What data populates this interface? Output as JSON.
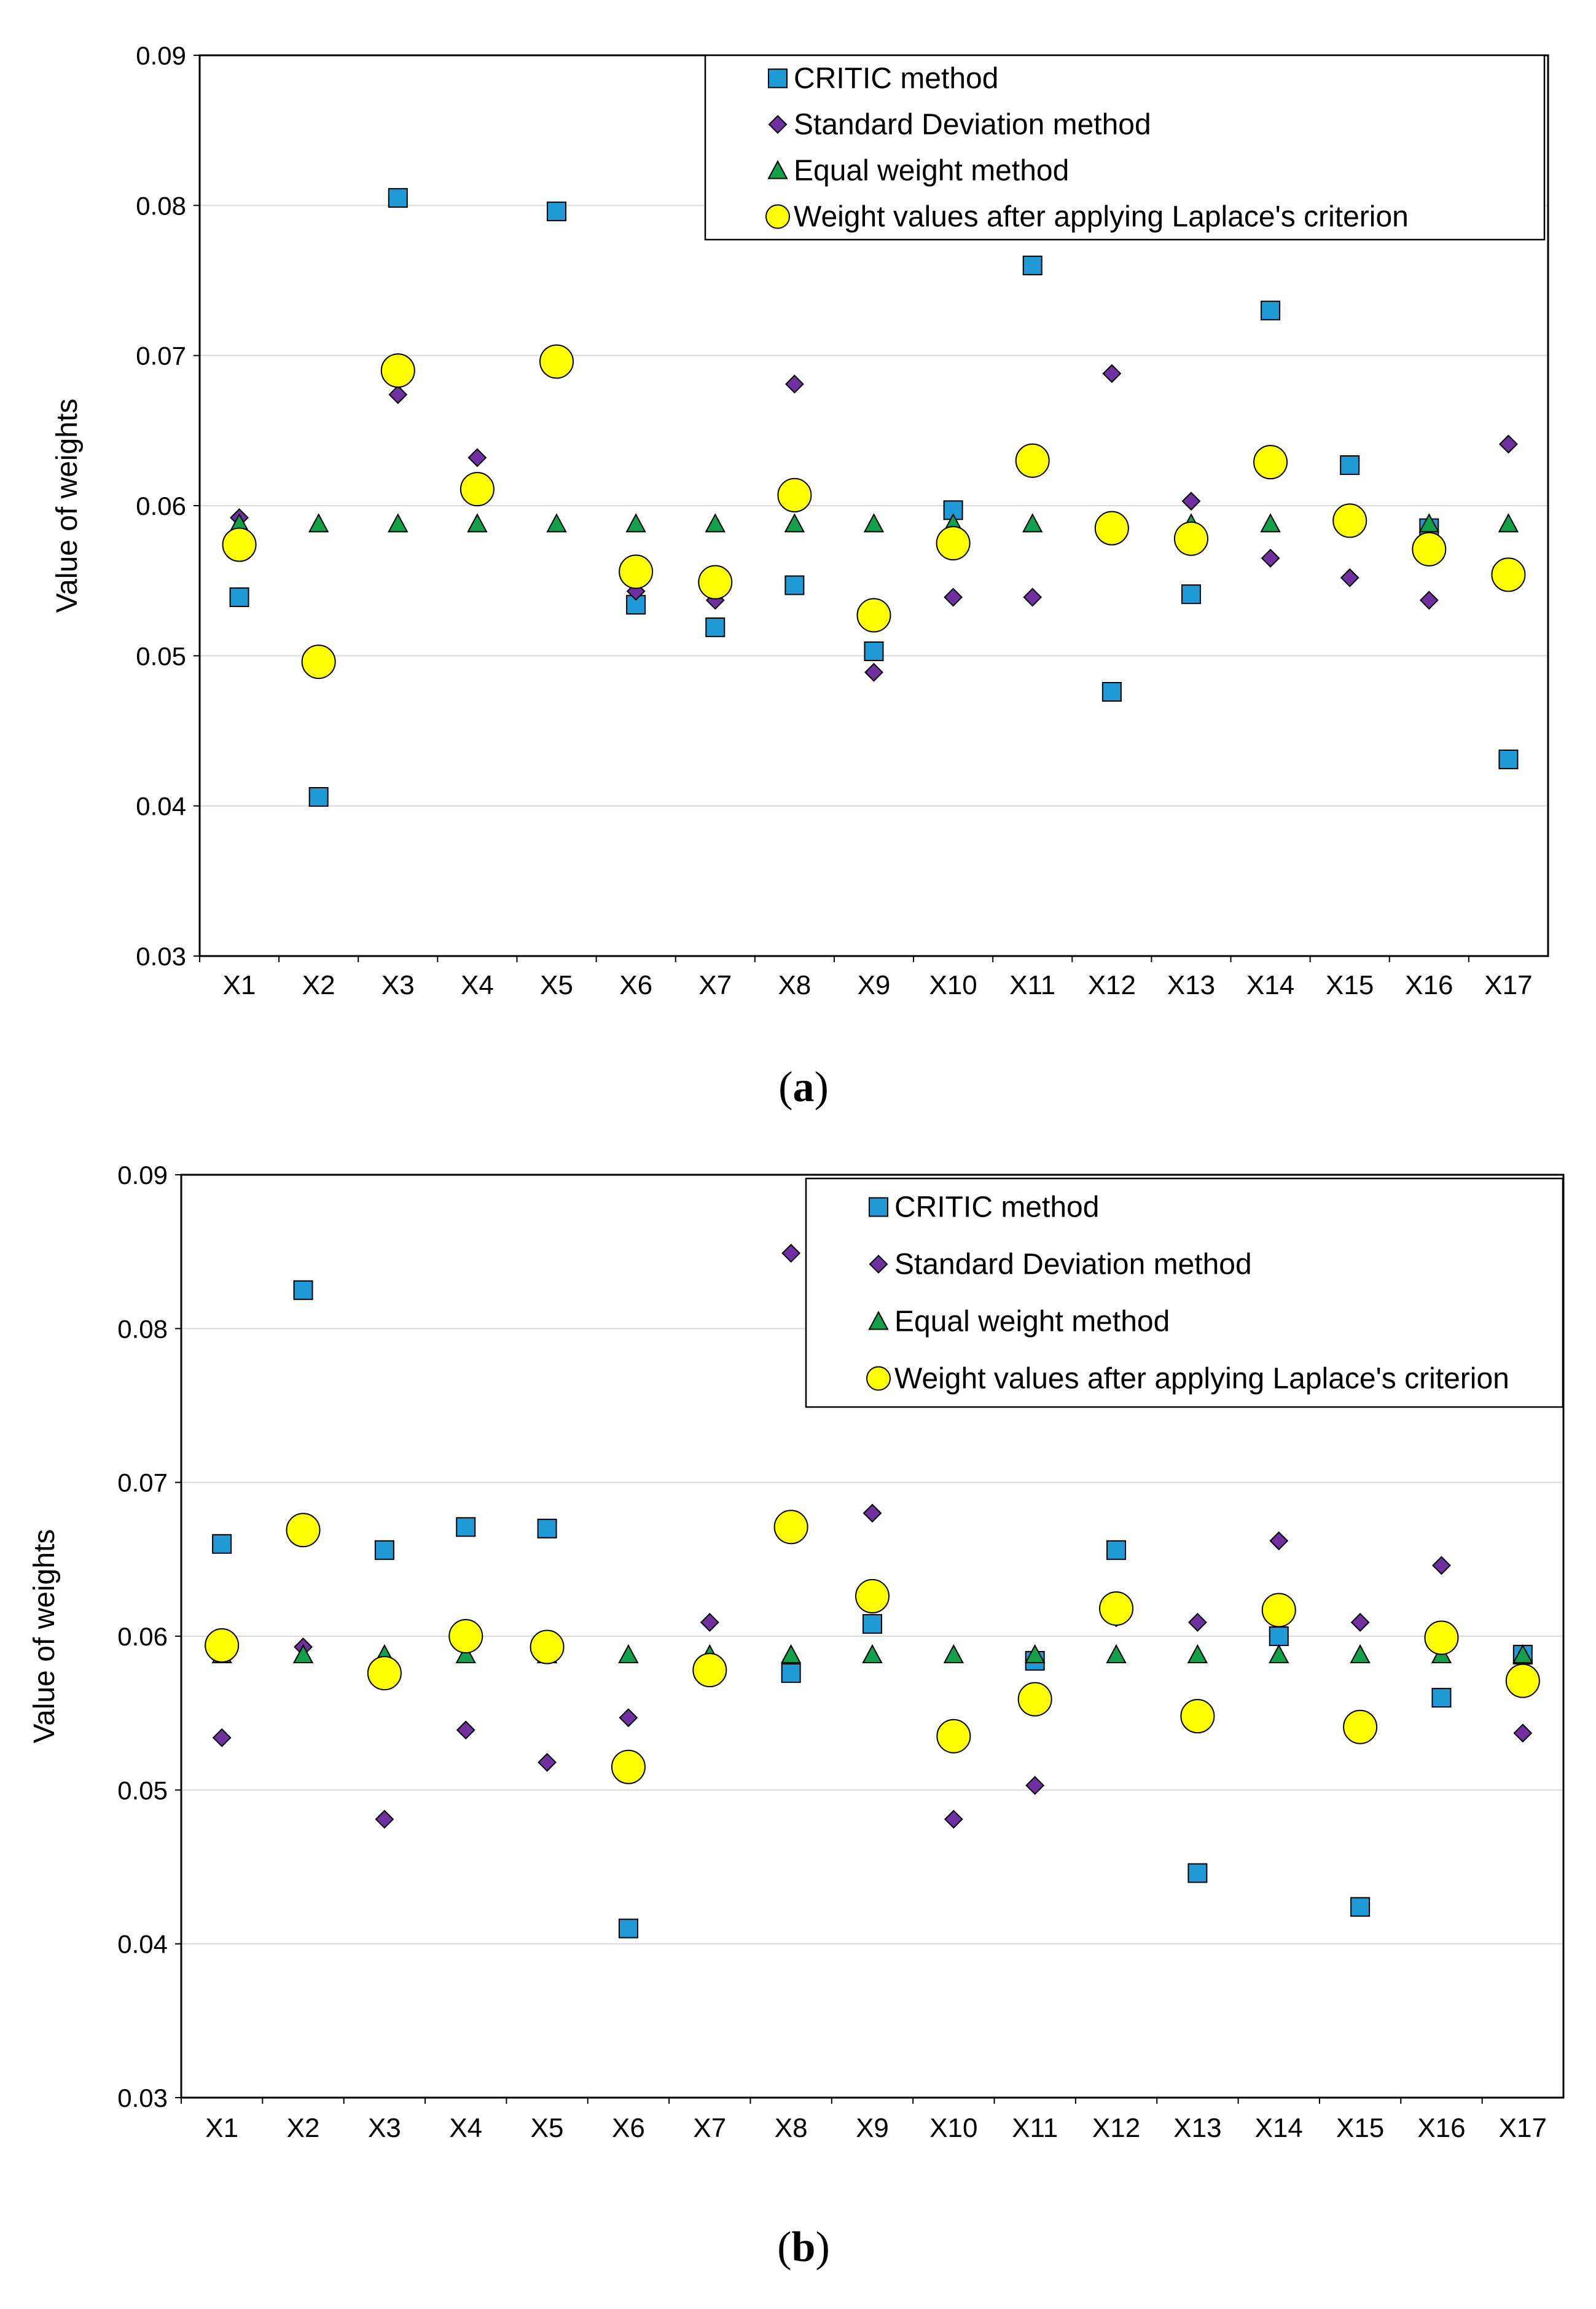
{
  "chart_data": [
    {
      "type": "scatter",
      "panel_label": "a",
      "ylabel": "Value of weights",
      "xlabel": "",
      "ylim": [
        0.03,
        0.09
      ],
      "yticks": [
        "0.03",
        "0.04",
        "0.05",
        "0.06",
        "0.07",
        "0.08",
        "0.09"
      ],
      "categories": [
        "X1",
        "X2",
        "X3",
        "X4",
        "X5",
        "X6",
        "X7",
        "X8",
        "X9",
        "X10",
        "X11",
        "X12",
        "X13",
        "X14",
        "X15",
        "X16",
        "X17"
      ],
      "grid": "horizontal",
      "legend_position": "top-right",
      "series": [
        {
          "name": "CRITIC method",
          "marker": "square",
          "color": "#1f9ad6",
          "values": [
            0.0539,
            0.0406,
            0.0805,
            null,
            0.0796,
            0.0534,
            0.0519,
            0.0547,
            0.0503,
            0.0597,
            0.076,
            0.0476,
            0.0541,
            0.073,
            0.0627,
            0.0585,
            0.0431
          ]
        },
        {
          "name": "Standard Deviation method",
          "marker": "diamond",
          "color": "#7030a0",
          "values": [
            0.0592,
            null,
            0.0674,
            0.0632,
            null,
            0.0543,
            0.0537,
            0.0681,
            0.0489,
            0.0539,
            0.0539,
            0.0688,
            0.0603,
            0.0565,
            0.0552,
            0.0537,
            0.0641
          ]
        },
        {
          "name": "Equal weight method",
          "marker": "triangle",
          "color": "#12a04b",
          "values": [
            0.0588,
            0.0588,
            0.0588,
            0.0588,
            0.0588,
            0.0588,
            0.0588,
            0.0588,
            0.0588,
            0.0588,
            0.0588,
            0.0588,
            0.0588,
            0.0588,
            0.0588,
            0.0588,
            0.0588
          ]
        },
        {
          "name": "Weight values after applying Laplace's criterion",
          "marker": "circle",
          "color": "#ffff00",
          "values": [
            0.0574,
            0.0496,
            0.069,
            0.0611,
            0.0696,
            0.0556,
            0.0549,
            0.0607,
            0.0527,
            0.0575,
            0.063,
            0.0585,
            0.0578,
            0.0629,
            0.059,
            0.0571,
            0.0554
          ]
        }
      ]
    },
    {
      "type": "scatter",
      "panel_label": "b",
      "ylabel": "Value of weights",
      "xlabel": "",
      "ylim": [
        0.03,
        0.09
      ],
      "yticks": [
        "0.03",
        "0.04",
        "0.05",
        "0.06",
        "0.07",
        "0.08",
        "0.09"
      ],
      "categories": [
        "X1",
        "X2",
        "X3",
        "X4",
        "X5",
        "X6",
        "X7",
        "X8",
        "X9",
        "X10",
        "X11",
        "X12",
        "X13",
        "X14",
        "X15",
        "X16",
        "X17"
      ],
      "grid": "horizontal",
      "legend_position": "top-right",
      "series": [
        {
          "name": "CRITIC method",
          "marker": "square",
          "color": "#1f9ad6",
          "values": [
            0.066,
            0.0825,
            0.0656,
            0.0671,
            0.067,
            0.041,
            null,
            0.0576,
            0.0608,
            null,
            0.0584,
            0.0656,
            0.0446,
            0.06,
            0.0424,
            0.056,
            0.0588
          ]
        },
        {
          "name": "Standard Deviation method",
          "marker": "diamond",
          "color": "#7030a0",
          "values": [
            0.0534,
            0.0593,
            0.0481,
            0.0539,
            0.0518,
            0.0547,
            0.0609,
            0.0849,
            0.068,
            0.0481,
            0.0503,
            0.0612,
            0.0609,
            0.0662,
            0.0609,
            0.0646,
            0.0537
          ]
        },
        {
          "name": "Equal weight method",
          "marker": "triangle",
          "color": "#12a04b",
          "values": [
            0.0588,
            0.0588,
            0.0588,
            0.0588,
            0.0588,
            0.0588,
            0.0588,
            0.0588,
            0.0588,
            0.0588,
            0.0588,
            0.0588,
            0.0588,
            0.0588,
            0.0588,
            0.0588,
            0.0588
          ]
        },
        {
          "name": "Weight values after applying Laplace's criterion",
          "marker": "circle",
          "color": "#ffff00",
          "values": [
            0.0594,
            0.0669,
            0.0576,
            0.06,
            0.0593,
            0.0515,
            0.0578,
            0.0671,
            0.0626,
            0.0535,
            0.0559,
            0.0618,
            0.0548,
            0.0617,
            0.0541,
            0.0599,
            0.0571
          ]
        }
      ]
    }
  ]
}
